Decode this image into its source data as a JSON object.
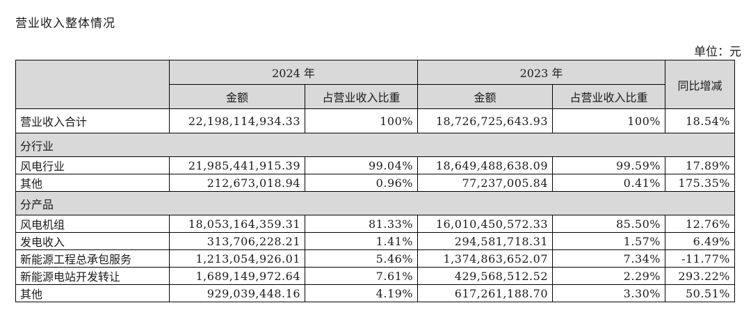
{
  "document": {
    "title": "营业收入整体情况",
    "unit": "单位：元"
  },
  "table": {
    "header": {
      "year_2024": "2024 年",
      "year_2023": "2023 年",
      "yoy": "同比增减",
      "amount": "金额",
      "share": "占营业收入比重"
    },
    "total": {
      "label": "营业收入合计",
      "amt_2024": "22,198,114,934.33",
      "pct_2024": "100%",
      "amt_2023": "18,726,725,643.93",
      "pct_2023": "100%",
      "yoy": "18.54%"
    },
    "sections": [
      {
        "title": "分行业",
        "rows": [
          {
            "label": "风电行业",
            "amt_2024": "21,985,441,915.39",
            "pct_2024": "99.04%",
            "amt_2023": "18,649,488,638.09",
            "pct_2023": "99.59%",
            "yoy": "17.89%"
          },
          {
            "label": "其他",
            "amt_2024": "212,673,018.94",
            "pct_2024": "0.96%",
            "amt_2023": "77,237,005.84",
            "pct_2023": "0.41%",
            "yoy": "175.35%"
          }
        ]
      },
      {
        "title": "分产品",
        "rows": [
          {
            "label": "风电机组",
            "amt_2024": "18,053,164,359.31",
            "pct_2024": "81.33%",
            "amt_2023": "16,010,450,572.33",
            "pct_2023": "85.50%",
            "yoy": "12.76%"
          },
          {
            "label": "发电收入",
            "amt_2024": "313,706,228.21",
            "pct_2024": "1.41%",
            "amt_2023": "294,581,718.31",
            "pct_2023": "1.57%",
            "yoy": "6.49%"
          },
          {
            "label": "新能源工程总承包服务",
            "amt_2024": "1,213,054,926.01",
            "pct_2024": "5.46%",
            "amt_2023": "1,374,863,652.07",
            "pct_2023": "7.34%",
            "yoy": "-11.77%"
          },
          {
            "label": "新能源电站开发转让",
            "amt_2024": "1,689,149,972.64",
            "pct_2024": "7.61%",
            "amt_2023": "429,568,512.52",
            "pct_2023": "2.29%",
            "yoy": "293.22%"
          },
          {
            "label": "其他",
            "amt_2024": "929,039,448.16",
            "pct_2024": "4.19%",
            "amt_2023": "617,261,188.70",
            "pct_2023": "3.30%",
            "yoy": "50.51%"
          }
        ]
      }
    ]
  }
}
